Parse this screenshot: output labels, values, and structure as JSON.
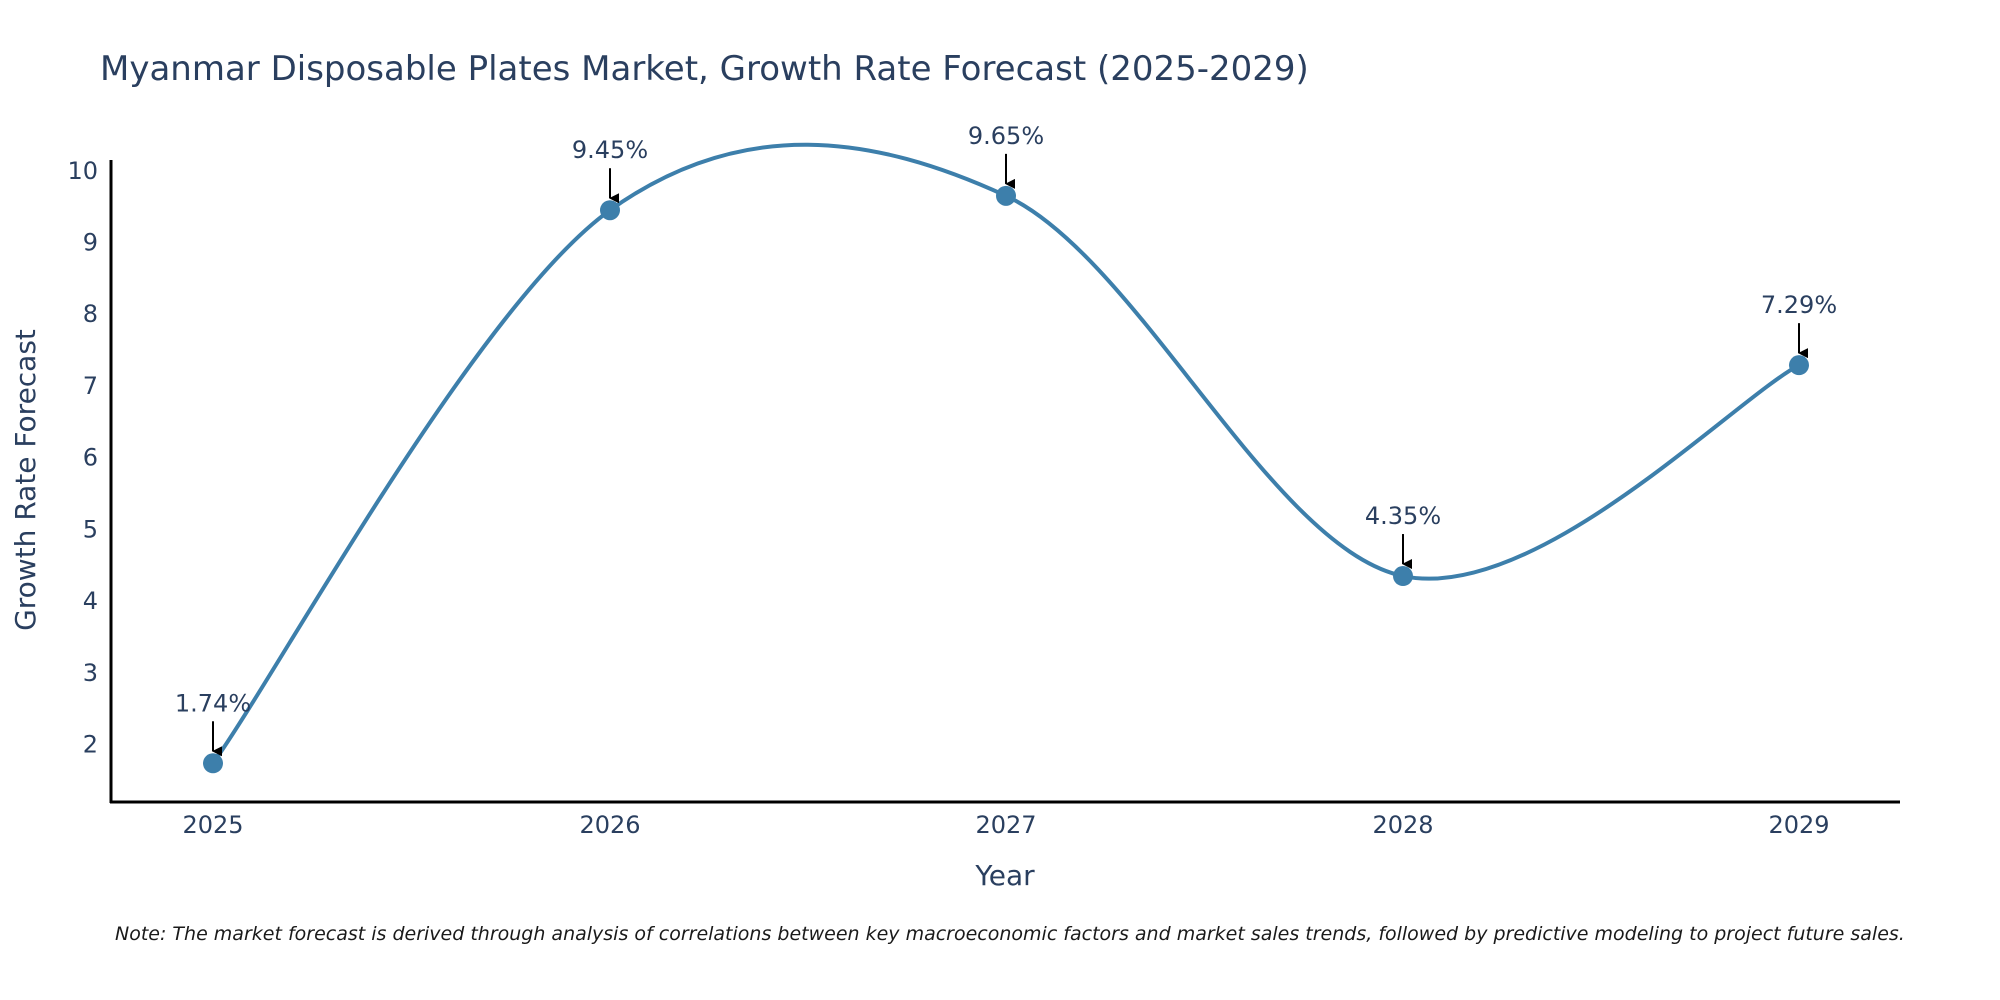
{
  "chart_data": {
    "type": "line",
    "title": "Myanmar Disposable Plates Market, Growth Rate Forecast (2025-2029)",
    "xlabel": "Year",
    "ylabel": "Growth Rate Forecast",
    "categories": [
      "2025",
      "2026",
      "2027",
      "2028",
      "2029"
    ],
    "values": [
      1.74,
      9.45,
      9.65,
      4.35,
      7.29
    ],
    "annotations": [
      "1.74%",
      "9.45%",
      "9.65%",
      "4.35%",
      "7.29%"
    ],
    "ylim": [
      1.2,
      10.15
    ],
    "yticks": [
      2,
      3,
      4,
      5,
      6,
      7,
      8,
      9,
      10
    ],
    "ytick_labels": [
      "2",
      "3",
      "4",
      "5",
      "6",
      "7",
      "8",
      "9",
      "10"
    ],
    "grid": false,
    "line_shape": "spline",
    "line_color": "#3d7fab",
    "marker_color": "#3d7fab",
    "annotation_arrow_color": "#000000"
  },
  "note": "Note: The market forecast is derived through analysis of correlations between key macroeconomic factors and market sales trends, followed by predictive modeling to project future sales."
}
